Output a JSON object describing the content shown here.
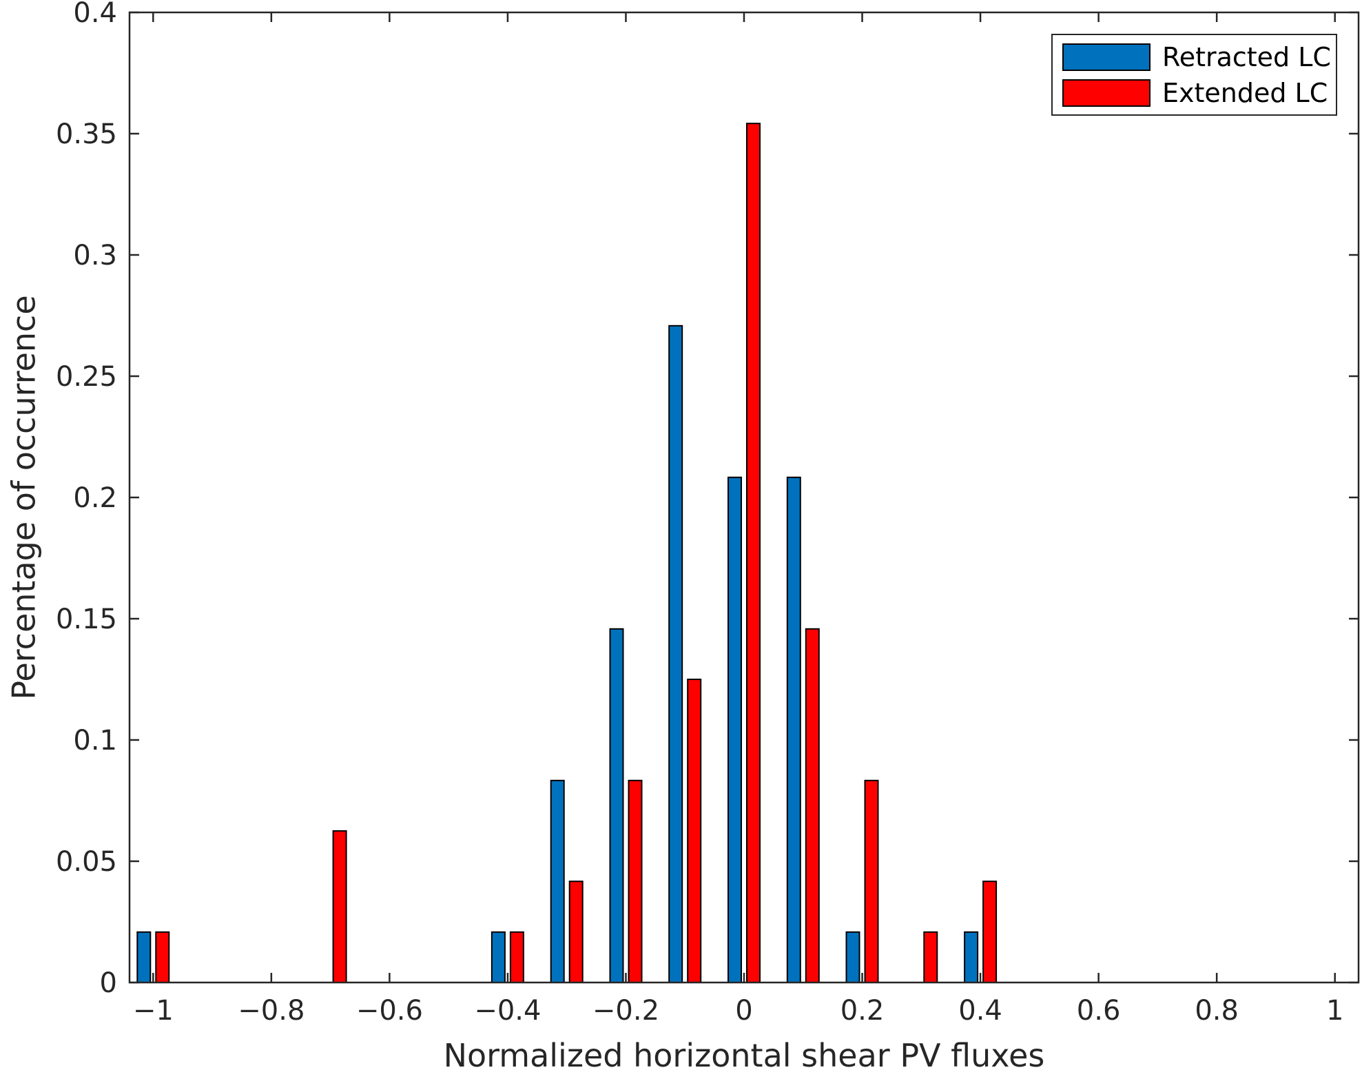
{
  "chart_data": {
    "type": "bar",
    "xlabel": "Normalized horizontal shear PV fluxes",
    "ylabel": "Percentage of occurrence",
    "xlim": [
      -1.04,
      1.04
    ],
    "ylim": [
      0,
      0.4
    ],
    "xticks": [
      -1,
      -0.8,
      -0.6,
      -0.4,
      -0.2,
      0,
      0.2,
      0.4,
      0.6,
      0.8,
      1
    ],
    "xtick_labels": [
      "−1",
      "−0.8",
      "−0.6",
      "−0.4",
      "−0.2",
      "0",
      "0.2",
      "0.4",
      "0.6",
      "0.8",
      "1"
    ],
    "yticks": [
      0,
      0.05,
      0.1,
      0.15,
      0.2,
      0.25,
      0.3,
      0.35,
      0.4
    ],
    "ytick_labels": [
      "0",
      "0.05",
      "0.1",
      "0.15",
      "0.2",
      "0.25",
      "0.3",
      "0.35",
      "0.4"
    ],
    "grid": false,
    "legend_position": "top-right",
    "series": [
      {
        "name": "Retracted LC",
        "color": "#0072BD",
        "x": [
          -1.0,
          -0.4,
          -0.3,
          -0.2,
          -0.1,
          0.0,
          0.1,
          0.2,
          0.4
        ],
        "values": [
          0.0208,
          0.0208,
          0.0833,
          0.1458,
          0.2708,
          0.2083,
          0.2083,
          0.0208,
          0.0208
        ]
      },
      {
        "name": "Extended LC",
        "color": "#FF0000",
        "x": [
          -1.0,
          -0.7,
          -0.4,
          -0.3,
          -0.2,
          -0.1,
          0.0,
          0.1,
          0.2,
          0.3,
          0.4
        ],
        "values": [
          0.0208,
          0.0625,
          0.0208,
          0.0417,
          0.0833,
          0.125,
          0.3542,
          0.1458,
          0.0833,
          0.0208,
          0.0417
        ]
      }
    ]
  }
}
